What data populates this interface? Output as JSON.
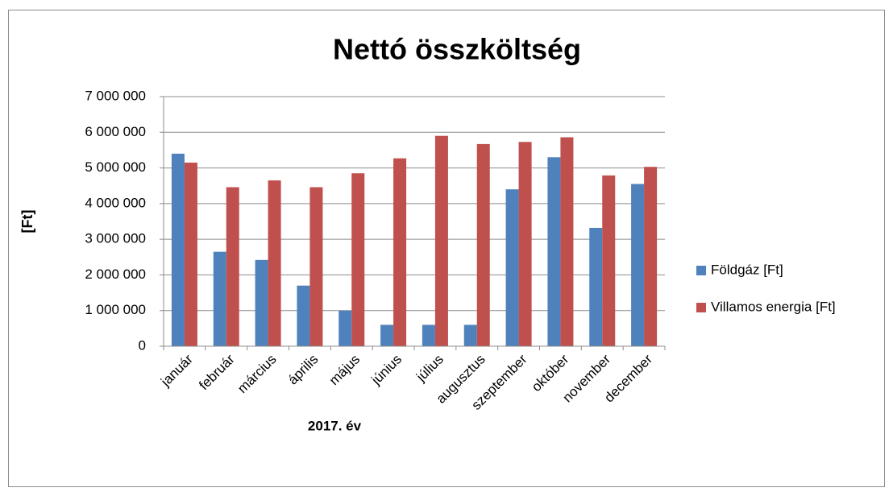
{
  "chart_data": {
    "type": "bar",
    "title": "Nettó összköltség",
    "x_label": "2017. év",
    "y_label": "[Ft]",
    "categories": [
      "január",
      "február",
      "március",
      "április",
      "május",
      "június",
      "július",
      "augusztus",
      "szeptember",
      "október",
      "november",
      "december"
    ],
    "series": [
      {
        "name": "Földgáz [Ft]",
        "color": "#4f81bd",
        "values": [
          5400000,
          2650000,
          2420000,
          1700000,
          1000000,
          600000,
          600000,
          600000,
          4400000,
          5300000,
          3320000,
          4550000
        ]
      },
      {
        "name": "Villamos energia [Ft]",
        "color": "#c0504d",
        "values": [
          5150000,
          4460000,
          4650000,
          4460000,
          4850000,
          5270000,
          5900000,
          5670000,
          5730000,
          5860000,
          4790000,
          5030000
        ]
      }
    ],
    "ylim": [
      0,
      7000000
    ],
    "yticks": [
      {
        "value": 0,
        "label": "0"
      },
      {
        "value": 1000000,
        "label": "1 000 000"
      },
      {
        "value": 2000000,
        "label": "2 000 000"
      },
      {
        "value": 3000000,
        "label": "3 000 000"
      },
      {
        "value": 4000000,
        "label": "4 000 000"
      },
      {
        "value": 5000000,
        "label": "5 000 000"
      },
      {
        "value": 6000000,
        "label": "6 000 000"
      },
      {
        "value": 7000000,
        "label": "7 000 000"
      }
    ],
    "grid": true,
    "legend": "right"
  }
}
